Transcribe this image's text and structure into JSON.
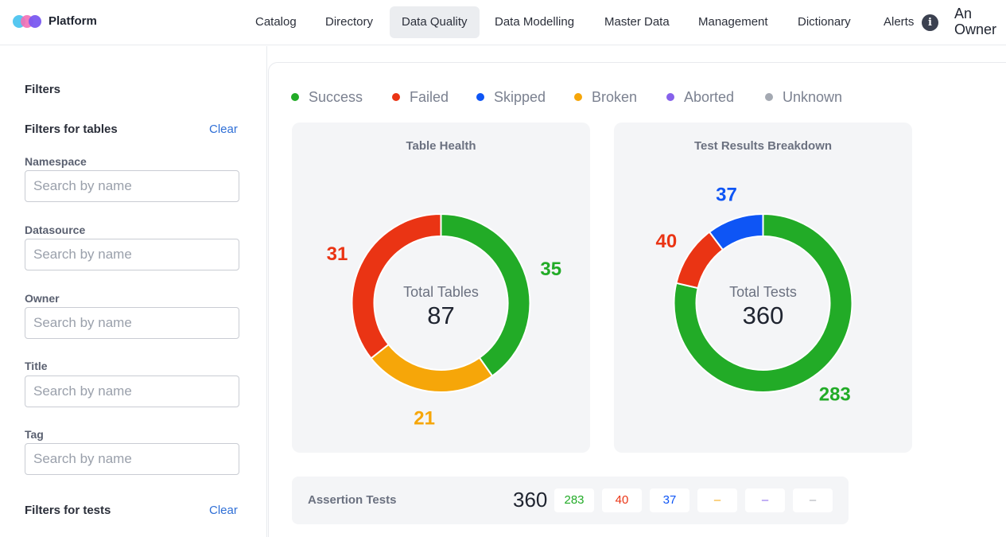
{
  "header": {
    "brand": "Platform",
    "nav": [
      {
        "label": "Catalog",
        "active": false
      },
      {
        "label": "Directory",
        "active": false
      },
      {
        "label": "Data Quality",
        "active": true
      },
      {
        "label": "Data Modelling",
        "active": false
      },
      {
        "label": "Master Data",
        "active": false
      },
      {
        "label": "Management",
        "active": false
      },
      {
        "label": "Dictionary",
        "active": false
      }
    ],
    "alerts": "Alerts",
    "info_glyph": "i",
    "user_line1": "An",
    "user_line2": "Owner"
  },
  "sidebar": {
    "title": "Filters",
    "tables_section": "Filters for tables",
    "clear": "Clear",
    "fields": [
      {
        "label": "Namespace",
        "placeholder": "Search by name"
      },
      {
        "label": "Datasource",
        "placeholder": "Search by name"
      },
      {
        "label": "Owner",
        "placeholder": "Search by name"
      },
      {
        "label": "Title",
        "placeholder": "Search by name"
      },
      {
        "label": "Tag",
        "placeholder": "Search by name"
      }
    ],
    "tests_section": "Filters for tests",
    "clear2": "Clear"
  },
  "legend": [
    {
      "label": "Success",
      "color": "#22ab27"
    },
    {
      "label": "Failed",
      "color": "#ea3414"
    },
    {
      "label": "Skipped",
      "color": "#0e55f5"
    },
    {
      "label": "Broken",
      "color": "#f6a609"
    },
    {
      "label": "Aborted",
      "color": "#8661eb"
    },
    {
      "label": "Unknown",
      "color": "#a4a9b2"
    }
  ],
  "chart_data": [
    {
      "type": "pie",
      "title": "Table Health",
      "center_label": "Total Tables",
      "center_value": "87",
      "slices": [
        {
          "name": "Success",
          "value": 35,
          "color": "#22ab27"
        },
        {
          "name": "Broken",
          "value": 21,
          "color": "#f6a609"
        },
        {
          "name": "Failed",
          "value": 31,
          "color": "#ea3414"
        }
      ]
    },
    {
      "type": "pie",
      "title": "Test Results Breakdown",
      "center_label": "Total Tests",
      "center_value": "360",
      "slices": [
        {
          "name": "Success",
          "value": 283,
          "color": "#22ab27"
        },
        {
          "name": "Failed",
          "value": 40,
          "color": "#ea3414"
        },
        {
          "name": "Skipped",
          "value": 37,
          "color": "#0e55f5"
        }
      ]
    }
  ],
  "assertion": {
    "label": "Assertion Tests",
    "total": "360",
    "pills": [
      {
        "text": "283",
        "color": "#22ab27"
      },
      {
        "text": "40",
        "color": "#ea3414"
      },
      {
        "text": "37",
        "color": "#0e55f5"
      },
      {
        "text": "–",
        "color": "#f6a609"
      },
      {
        "text": "–",
        "color": "#8661eb"
      },
      {
        "text": "–",
        "color": "#a4a9b2"
      }
    ]
  }
}
